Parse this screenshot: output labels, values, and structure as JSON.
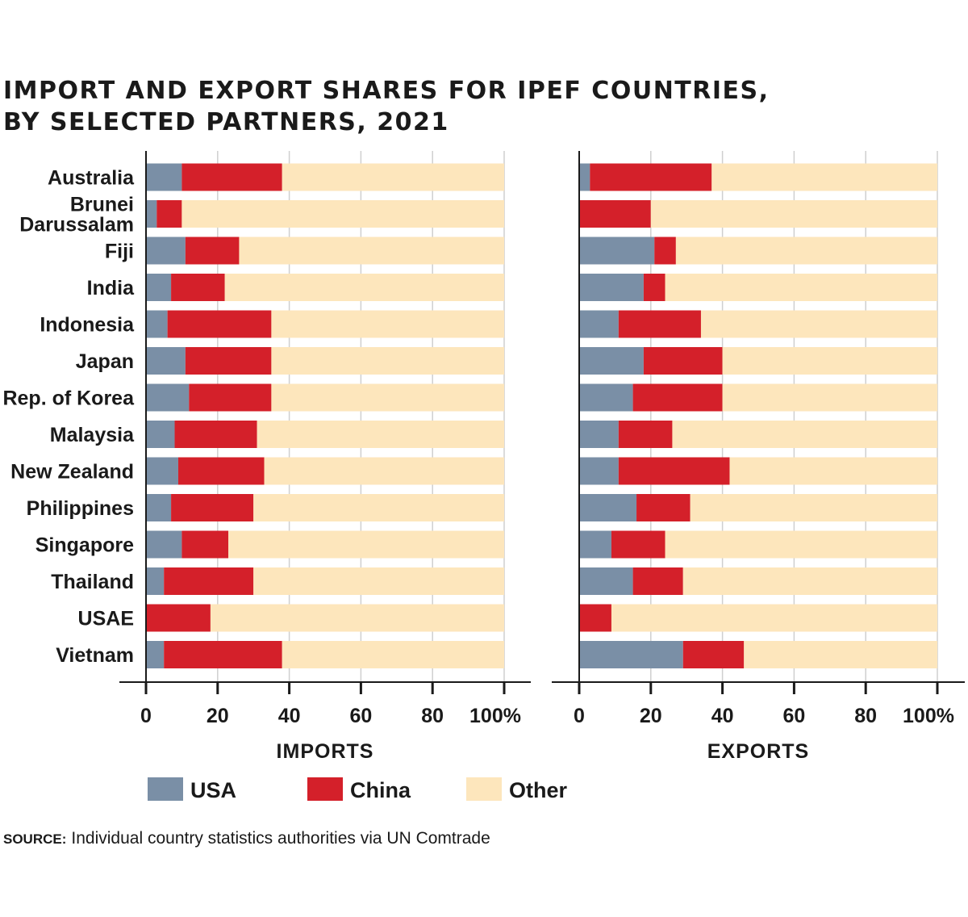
{
  "chart_data": {
    "type": "bar",
    "stacked": true,
    "orientation": "horizontal",
    "title_lines": [
      "IMPORT AND EXPORT SHARES FOR IPEF COUNTRIES,",
      "BY SELECTED PARTNERS, 2021"
    ],
    "categories": [
      [
        "Australia"
      ],
      [
        "Brunei",
        "Darussalam"
      ],
      [
        "Fiji"
      ],
      [
        "India"
      ],
      [
        "Indonesia"
      ],
      [
        "Japan"
      ],
      [
        "Rep. of Korea"
      ],
      [
        "Malaysia"
      ],
      [
        "New Zealand"
      ],
      [
        "Philippines"
      ],
      [
        "Singapore"
      ],
      [
        "Thailand"
      ],
      [
        "USAE"
      ],
      [
        "Vietnam"
      ]
    ],
    "xlim": [
      0,
      100
    ],
    "xticks": [
      "0",
      "20",
      "40",
      "60",
      "80",
      "100%"
    ],
    "grid": true,
    "legend_position": "bottom",
    "series": [
      {
        "name": "USA",
        "color": "#7a8fa6"
      },
      {
        "name": "China",
        "color": "#d4202a"
      },
      {
        "name": "Other",
        "color": "#fde6bc"
      }
    ],
    "panels": [
      {
        "label": "IMPORTS",
        "values": {
          "USA": [
            10,
            3,
            11,
            7,
            6,
            11,
            12,
            8,
            9,
            7,
            10,
            5,
            0,
            5
          ],
          "China": [
            28,
            7,
            15,
            15,
            29,
            24,
            23,
            23,
            24,
            23,
            13,
            25,
            18,
            33
          ],
          "Other": [
            62,
            90,
            74,
            78,
            65,
            65,
            65,
            69,
            67,
            70,
            77,
            70,
            82,
            62
          ]
        }
      },
      {
        "label": "EXPORTS",
        "values": {
          "USA": [
            3,
            0,
            21,
            18,
            11,
            18,
            15,
            11,
            11,
            16,
            9,
            15,
            0,
            29
          ],
          "China": [
            34,
            20,
            6,
            6,
            23,
            22,
            25,
            15,
            31,
            15,
            15,
            14,
            9,
            17
          ],
          "Other": [
            63,
            80,
            73,
            76,
            66,
            60,
            60,
            74,
            58,
            69,
            76,
            71,
            91,
            54
          ]
        }
      }
    ],
    "source_label": "SOURCE:",
    "source_text": "Individual country statistics authorities via UN Comtrade"
  }
}
